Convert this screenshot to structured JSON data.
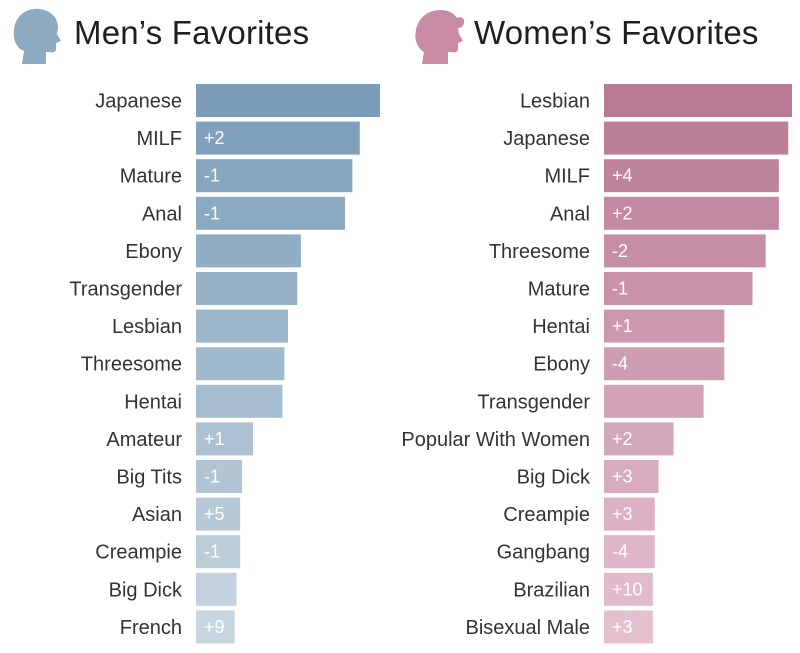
{
  "chart_data": [
    {
      "type": "bar",
      "orientation": "horizontal",
      "title": "Men’s Favorites",
      "icon": "male-head-silhouette-icon",
      "color": "#7b9db8",
      "color_light": "#c7d5e0",
      "categories": [
        "Japanese",
        "MILF",
        "Mature",
        "Anal",
        "Ebony",
        "Transgender",
        "Lesbian",
        "Threesome",
        "Hentai",
        "Amateur",
        "Big Tits",
        "Asian",
        "Creampie",
        "Big Dick",
        "French"
      ],
      "values": [
        100,
        89,
        85,
        81,
        57,
        55,
        50,
        48,
        47,
        31,
        25,
        24,
        24,
        22,
        21
      ],
      "changes": [
        "",
        "+2",
        "-1",
        "-1",
        "",
        "",
        "",
        "",
        "",
        "+1",
        "-1",
        "+5",
        "-1",
        "",
        "+9"
      ],
      "grid": false
    },
    {
      "type": "bar",
      "orientation": "horizontal",
      "title": "Women’s Favorites",
      "icon": "female-head-silhouette-icon",
      "color": "#b97a95",
      "color_light": "#e4c0cf",
      "categories": [
        "Lesbian",
        "Japanese",
        "MILF",
        "Anal",
        "Threesome",
        "Mature",
        "Hentai",
        "Ebony",
        "Transgender",
        "Popular With Women",
        "Big Dick",
        "Creampie",
        "Gangbang",
        "Brazilian",
        "Bisexual Male"
      ],
      "values": [
        100,
        98,
        93,
        93,
        86,
        79,
        64,
        64,
        53,
        37,
        29,
        27,
        27,
        26,
        26
      ],
      "changes": [
        "",
        "",
        "+4",
        "+2",
        "-2",
        "-1",
        "+1",
        "-4",
        "",
        "+2",
        "+3",
        "+3",
        "-4",
        "+10",
        "+3"
      ],
      "grid": false
    }
  ]
}
